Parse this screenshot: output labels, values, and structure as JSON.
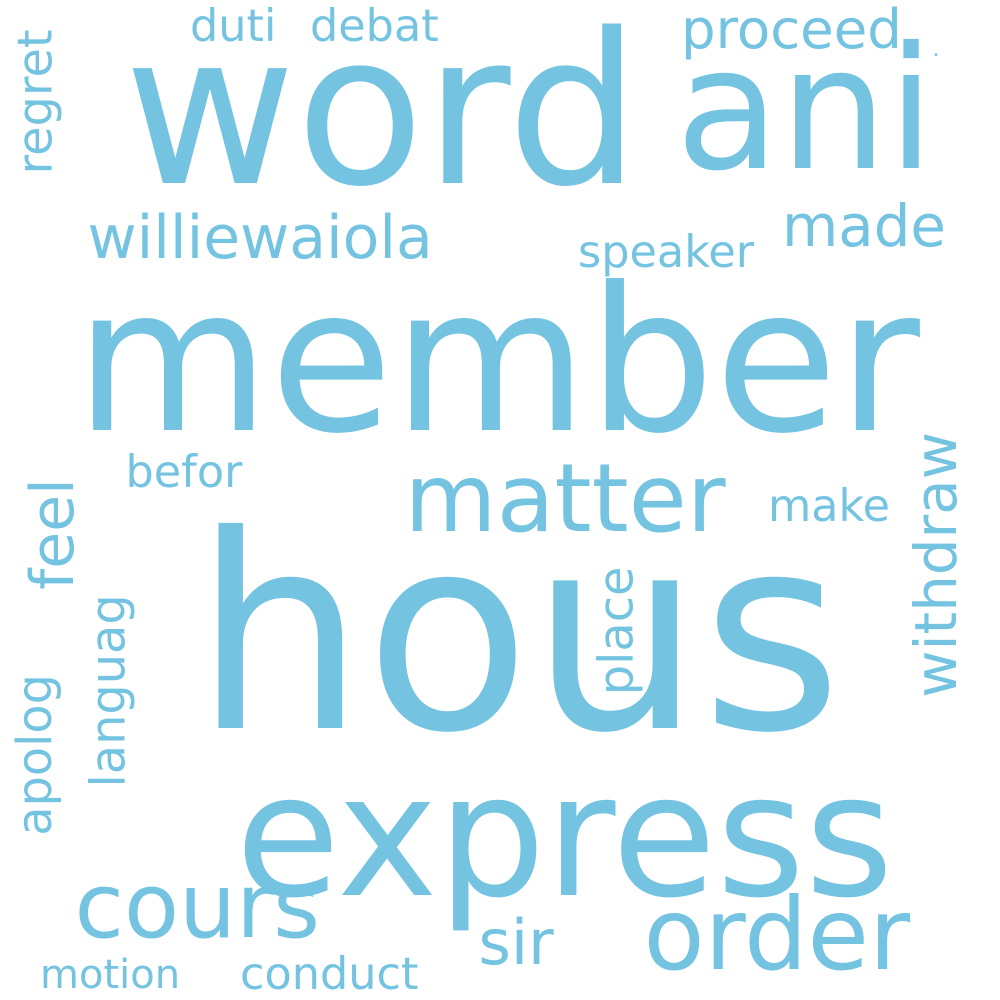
{
  "cloud": {
    "color": "#74c3e1",
    "background": "#ffffff",
    "words": [
      {
        "text": "hous",
        "vertical": false
      },
      {
        "text": "member",
        "vertical": false
      },
      {
        "text": "word",
        "vertical": false
      },
      {
        "text": "ani",
        "vertical": false
      },
      {
        "text": "express",
        "vertical": false
      },
      {
        "text": "order",
        "vertical": false
      },
      {
        "text": "cours",
        "vertical": false
      },
      {
        "text": "matter",
        "vertical": false
      },
      {
        "text": "proceed",
        "vertical": false
      },
      {
        "text": "williewaiola",
        "vertical": false
      },
      {
        "text": "made",
        "vertical": false
      },
      {
        "text": "speaker",
        "vertical": false
      },
      {
        "text": "duti",
        "vertical": false
      },
      {
        "text": "debat",
        "vertical": false
      },
      {
        "text": "befor",
        "vertical": false
      },
      {
        "text": "make",
        "vertical": false
      },
      {
        "text": "sir",
        "vertical": false
      },
      {
        "text": "motion",
        "vertical": false
      },
      {
        "text": "conduct",
        "vertical": false
      },
      {
        "text": "withdraw",
        "vertical": true
      },
      {
        "text": "feel",
        "vertical": true
      },
      {
        "text": "languag",
        "vertical": true
      },
      {
        "text": "apolog",
        "vertical": true
      },
      {
        "text": "place",
        "vertical": true
      },
      {
        "text": "regret",
        "vertical": true
      },
      {
        "text": ".",
        "vertical": false
      }
    ]
  }
}
